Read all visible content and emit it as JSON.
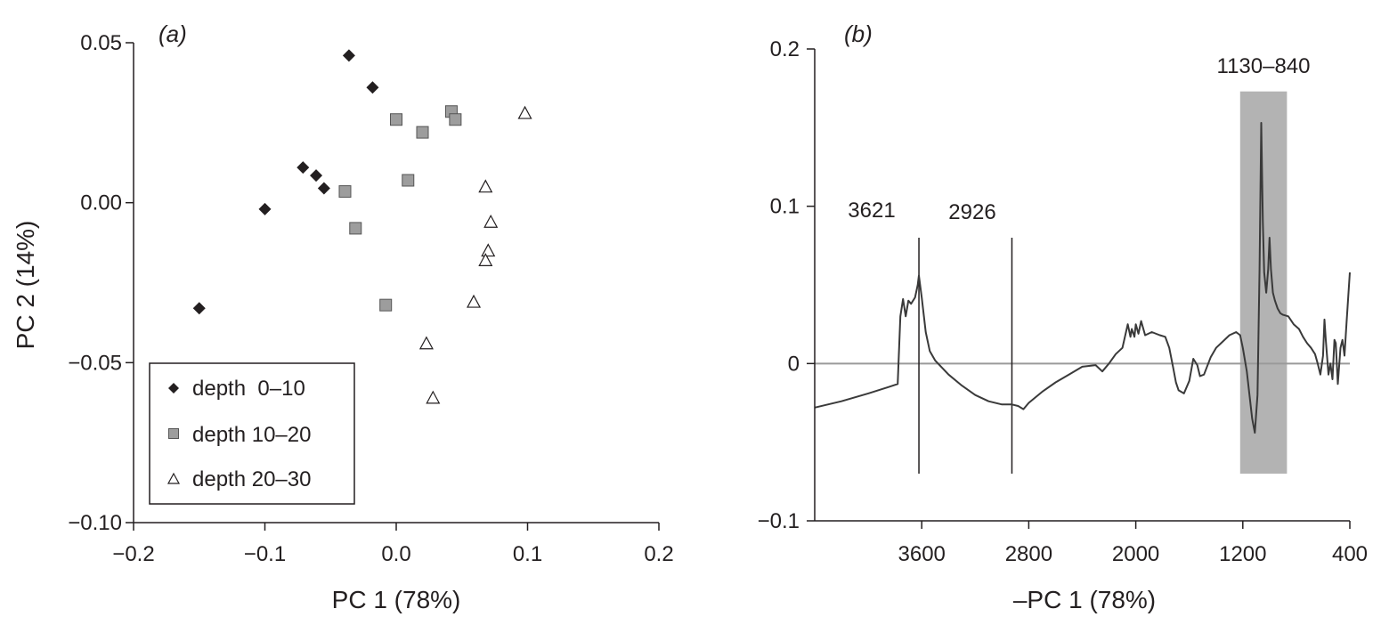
{
  "chart_data": [
    {
      "type": "scatter",
      "panel_label": "(a)",
      "xlabel": "PC 1 (78%)",
      "ylabel": "PC 2 (14%)",
      "xlim": [
        -0.2,
        0.2
      ],
      "ylim": [
        -0.1,
        0.05
      ],
      "xticks": [
        -0.2,
        -0.1,
        0.0,
        0.1,
        0.2
      ],
      "xtick_labels": [
        "−0.2",
        "−0.1",
        "0.0",
        "0.1",
        "0.2"
      ],
      "yticks": [
        0.05,
        0.0,
        -0.05,
        -0.1
      ],
      "ytick_labels": [
        "0.05",
        "0.00",
        "−0.05",
        "−0.10"
      ],
      "grid": false,
      "legend_position": "bottom-left",
      "series": [
        {
          "name": "depth  0–10",
          "marker": "diamond",
          "color": "#231f20",
          "points": [
            [
              -0.036,
              0.046
            ],
            [
              -0.018,
              0.036
            ],
            [
              -0.071,
              0.011
            ],
            [
              -0.061,
              0.0085
            ],
            [
              -0.055,
              0.0045
            ],
            [
              -0.1,
              -0.002
            ],
            [
              -0.15,
              -0.033
            ]
          ]
        },
        {
          "name": "depth 10–20",
          "marker": "square",
          "color": "#9d9d9d",
          "points": [
            [
              0.042,
              0.0285
            ],
            [
              0.045,
              0.026
            ],
            [
              0.0,
              0.026
            ],
            [
              0.02,
              0.022
            ],
            [
              0.009,
              0.007
            ],
            [
              -0.039,
              0.0035
            ],
            [
              -0.031,
              -0.008
            ],
            [
              -0.008,
              -0.032
            ]
          ]
        },
        {
          "name": "depth 20–30",
          "marker": "triangle",
          "color": "#231f20",
          "points": [
            [
              0.098,
              0.028
            ],
            [
              0.068,
              0.005
            ],
            [
              0.072,
              -0.006
            ],
            [
              0.07,
              -0.015
            ],
            [
              0.068,
              -0.018
            ],
            [
              0.059,
              -0.031
            ],
            [
              0.023,
              -0.044
            ],
            [
              0.028,
              -0.061
            ]
          ]
        }
      ]
    },
    {
      "type": "line",
      "panel_label": "(b)",
      "xlabel": "–PC 1 (78%)",
      "ylabel": "",
      "xlim": [
        4400,
        400
      ],
      "x_reversed": true,
      "ylim": [
        -0.1,
        0.2
      ],
      "xticks": [
        3600,
        2800,
        2000,
        1200,
        400
      ],
      "xtick_labels": [
        "3600",
        "2800",
        "2000",
        "1200",
        "400"
      ],
      "yticks": [
        0.2,
        0.1,
        0,
        -0.1
      ],
      "ytick_labels": [
        "0.2",
        "0.1",
        "0",
        "−0.1"
      ],
      "grid": false,
      "zero_line_color": "#9a9a9a",
      "highlight_band": {
        "x_range": [
          1220,
          870
        ],
        "y_range": [
          -0.07,
          0.173
        ],
        "color": "#b3b3b3",
        "label": "1130–840"
      },
      "marker_lines": [
        {
          "x": 3621,
          "y_range": [
            -0.07,
            0.08
          ],
          "label": "3621"
        },
        {
          "x": 2926,
          "y_range": [
            -0.07,
            0.08
          ],
          "label": "2926"
        }
      ],
      "series": [
        {
          "color": "#3a3a3a",
          "points": [
            [
              4400,
              -0.028
            ],
            [
              4200,
              -0.024
            ],
            [
              4000,
              -0.019
            ],
            [
              3850,
              -0.015
            ],
            [
              3780,
              -0.013
            ],
            [
              3760,
              0.03
            ],
            [
              3740,
              0.041
            ],
            [
              3720,
              0.03
            ],
            [
              3700,
              0.04
            ],
            [
              3680,
              0.038
            ],
            [
              3650,
              0.042
            ],
            [
              3630,
              0.05
            ],
            [
              3621,
              0.056
            ],
            [
              3600,
              0.042
            ],
            [
              3570,
              0.02
            ],
            [
              3540,
              0.008
            ],
            [
              3500,
              0.002
            ],
            [
              3400,
              -0.007
            ],
            [
              3300,
              -0.014
            ],
            [
              3200,
              -0.02
            ],
            [
              3100,
              -0.024
            ],
            [
              3000,
              -0.026
            ],
            [
              2926,
              -0.026
            ],
            [
              2880,
              -0.027
            ],
            [
              2840,
              -0.029
            ],
            [
              2800,
              -0.025
            ],
            [
              2700,
              -0.018
            ],
            [
              2600,
              -0.012
            ],
            [
              2500,
              -0.007
            ],
            [
              2400,
              -0.002
            ],
            [
              2300,
              -0.001
            ],
            [
              2250,
              -0.005
            ],
            [
              2200,
              0.0
            ],
            [
              2150,
              0.006
            ],
            [
              2100,
              0.01
            ],
            [
              2060,
              0.025
            ],
            [
              2040,
              0.017
            ],
            [
              2030,
              0.022
            ],
            [
              2010,
              0.017
            ],
            [
              2000,
              0.025
            ],
            [
              1980,
              0.019
            ],
            [
              1960,
              0.027
            ],
            [
              1930,
              0.018
            ],
            [
              1880,
              0.02
            ],
            [
              1820,
              0.018
            ],
            [
              1780,
              0.017
            ],
            [
              1750,
              0.01
            ],
            [
              1720,
              -0.003
            ],
            [
              1700,
              -0.012
            ],
            [
              1680,
              -0.017
            ],
            [
              1640,
              -0.019
            ],
            [
              1600,
              -0.011
            ],
            [
              1570,
              0.003
            ],
            [
              1540,
              -0.001
            ],
            [
              1520,
              -0.008
            ],
            [
              1490,
              -0.007
            ],
            [
              1440,
              0.004
            ],
            [
              1400,
              0.01
            ],
            [
              1350,
              0.014
            ],
            [
              1300,
              0.018
            ],
            [
              1250,
              0.02
            ],
            [
              1220,
              0.018
            ],
            [
              1200,
              0.01
            ],
            [
              1170,
              -0.005
            ],
            [
              1150,
              -0.02
            ],
            [
              1130,
              -0.035
            ],
            [
              1110,
              -0.044
            ],
            [
              1090,
              -0.02
            ],
            [
              1075,
              0.06
            ],
            [
              1062,
              0.153
            ],
            [
              1050,
              0.09
            ],
            [
              1040,
              0.058
            ],
            [
              1025,
              0.045
            ],
            [
              1010,
              0.06
            ],
            [
              1000,
              0.08
            ],
            [
              990,
              0.06
            ],
            [
              975,
              0.045
            ],
            [
              960,
              0.04
            ],
            [
              940,
              0.035
            ],
            [
              920,
              0.032
            ],
            [
              900,
              0.031
            ],
            [
              860,
              0.03
            ],
            [
              820,
              0.025
            ],
            [
              780,
              0.022
            ],
            [
              750,
              0.017
            ],
            [
              720,
              0.013
            ],
            [
              690,
              0.01
            ],
            [
              660,
              0.006
            ],
            [
              640,
              0.0
            ],
            [
              620,
              -0.007
            ],
            [
              600,
              0.005
            ],
            [
              590,
              0.028
            ],
            [
              580,
              0.015
            ],
            [
              570,
              0.004
            ],
            [
              560,
              -0.007
            ],
            [
              545,
              0.0
            ],
            [
              530,
              -0.01
            ],
            [
              515,
              0.015
            ],
            [
              505,
              0.013
            ],
            [
              490,
              -0.013
            ],
            [
              470,
              0.01
            ],
            [
              455,
              0.015
            ],
            [
              440,
              0.005
            ],
            [
              425,
              0.025
            ],
            [
              410,
              0.045
            ],
            [
              400,
              0.058
            ]
          ]
        }
      ],
      "annotations": [
        "3621",
        "2926",
        "1130–840"
      ]
    }
  ]
}
